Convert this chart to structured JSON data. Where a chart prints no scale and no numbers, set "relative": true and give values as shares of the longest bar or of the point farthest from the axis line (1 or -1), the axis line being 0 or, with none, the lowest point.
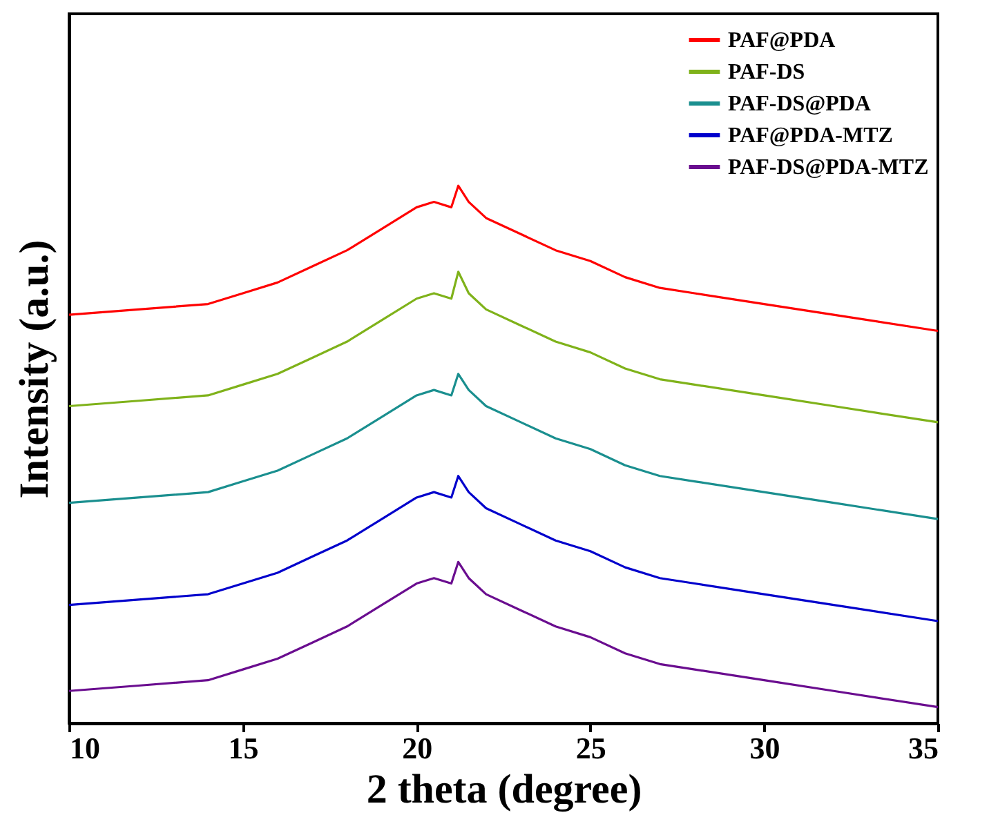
{
  "chart_data": {
    "type": "line",
    "relative": true,
    "xlabel": "2 theta (degree)",
    "ylabel": "Intensity (a.u.)",
    "xlim": [
      10,
      35
    ],
    "xticks": [
      10,
      15,
      20,
      25,
      30,
      35
    ],
    "legend": "top right",
    "grid": false,
    "marker": "none",
    "line_style": "solid",
    "x": [
      10,
      12,
      14,
      15,
      16,
      17,
      18,
      19,
      20,
      20.5,
      21,
      21.2,
      21.5,
      22,
      23,
      24,
      25,
      26,
      27,
      28,
      30,
      32,
      35
    ],
    "series": [
      {
        "name": "PAF@PDA",
        "color": "#ff0000",
        "values": [
          0.76,
          0.77,
          0.78,
          0.8,
          0.82,
          0.85,
          0.88,
          0.92,
          0.96,
          0.97,
          0.96,
          1.0,
          0.97,
          0.94,
          0.91,
          0.88,
          0.86,
          0.83,
          0.81,
          0.8,
          0.78,
          0.76,
          0.73
        ]
      },
      {
        "name": "PAF-DS",
        "color": "#7fb21a",
        "values": [
          0.59,
          0.6,
          0.61,
          0.63,
          0.65,
          0.68,
          0.71,
          0.75,
          0.79,
          0.8,
          0.79,
          0.84,
          0.8,
          0.77,
          0.74,
          0.71,
          0.69,
          0.66,
          0.64,
          0.63,
          0.61,
          0.59,
          0.56
        ]
      },
      {
        "name": "PAF-DS@PDA",
        "color": "#1a8f8f",
        "values": [
          0.41,
          0.42,
          0.43,
          0.45,
          0.47,
          0.5,
          0.53,
          0.57,
          0.61,
          0.62,
          0.61,
          0.65,
          0.62,
          0.59,
          0.56,
          0.53,
          0.51,
          0.48,
          0.46,
          0.45,
          0.43,
          0.41,
          0.38
        ]
      },
      {
        "name": "PAF@PDA-MTZ",
        "color": "#0000cc",
        "values": [
          0.22,
          0.23,
          0.24,
          0.26,
          0.28,
          0.31,
          0.34,
          0.38,
          0.42,
          0.43,
          0.42,
          0.46,
          0.43,
          0.4,
          0.37,
          0.34,
          0.32,
          0.29,
          0.27,
          0.26,
          0.24,
          0.22,
          0.19
        ]
      },
      {
        "name": "PAF-DS@PDA-MTZ",
        "color": "#6a0d8f",
        "values": [
          0.06,
          0.07,
          0.08,
          0.1,
          0.12,
          0.15,
          0.18,
          0.22,
          0.26,
          0.27,
          0.26,
          0.3,
          0.27,
          0.24,
          0.21,
          0.18,
          0.16,
          0.13,
          0.11,
          0.1,
          0.08,
          0.06,
          0.03
        ]
      }
    ]
  }
}
